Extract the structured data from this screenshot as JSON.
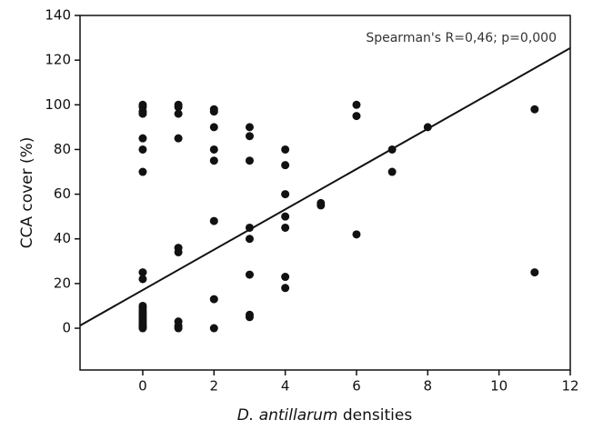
{
  "chart_data": {
    "type": "scatter",
    "annotation": "Spearman's R=0,46; p=0,000",
    "ylabel": "CCA cover (%)",
    "xlabel": [
      "D. antillarum",
      "densities"
    ],
    "xlim": [
      -1.76,
      12
    ],
    "xticks": [
      0,
      2,
      4,
      6,
      8,
      10,
      12
    ],
    "ylim": [
      -18.7,
      140
    ],
    "yticks": [
      0,
      20,
      40,
      60,
      80,
      100,
      120,
      140
    ],
    "color": "#111111",
    "series": [
      {
        "x": [
          0,
          0,
          0,
          0,
          0,
          0,
          0,
          0,
          0,
          0,
          0,
          0,
          0,
          0,
          0,
          0,
          0,
          0,
          0,
          0,
          0,
          1,
          1,
          1,
          1,
          1,
          1,
          1,
          1,
          1,
          2,
          2,
          2,
          2,
          2,
          2,
          2,
          2,
          3,
          3,
          3,
          3,
          3,
          3,
          3,
          3,
          4,
          4,
          4,
          4,
          4,
          4,
          4,
          5,
          5,
          6,
          6,
          6,
          7,
          7,
          8,
          11,
          11
        ],
        "y": [
          100,
          99,
          97,
          96,
          85,
          80,
          70,
          25,
          22,
          10,
          9,
          8,
          7,
          6,
          5,
          4,
          3,
          2,
          1,
          0.5,
          0,
          100,
          99,
          96,
          85,
          36,
          34,
          3,
          1,
          0,
          98,
          97,
          90,
          80,
          75,
          48,
          13,
          0,
          90,
          86,
          75,
          45,
          40,
          24,
          6,
          5,
          80,
          73,
          60,
          50,
          45,
          23,
          18,
          56,
          55,
          100,
          95,
          42,
          80,
          70,
          90,
          98,
          25
        ]
      }
    ],
    "trend_line": {
      "x": [
        -1.76,
        12
      ],
      "y": [
        1.2,
        125.4
      ]
    }
  }
}
